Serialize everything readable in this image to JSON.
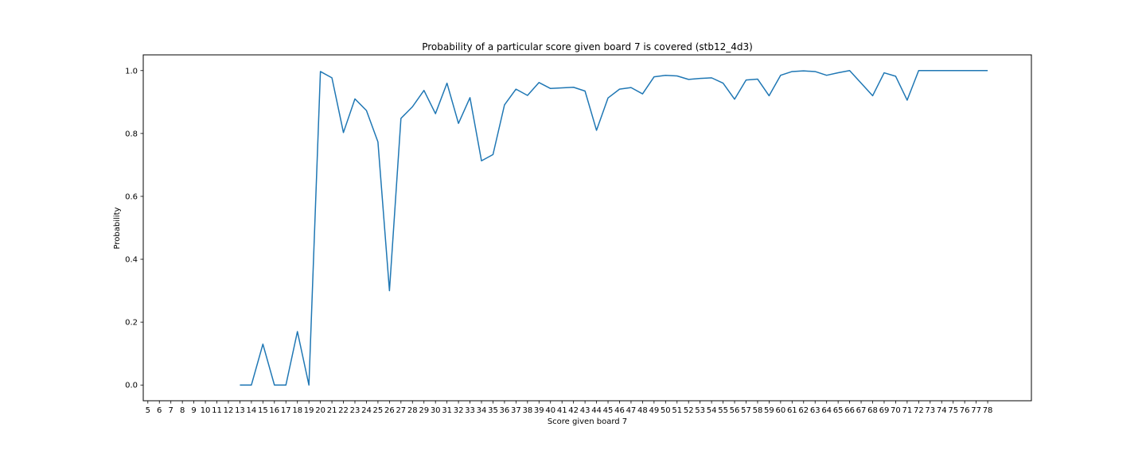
{
  "chart_data": {
    "type": "line",
    "title": "Probability of a particular score given board 7 is covered (stb12_4d3)",
    "xlabel": "Score given board 7",
    "ylabel": "Probability",
    "xticks": [
      5,
      6,
      7,
      8,
      9,
      10,
      11,
      12,
      13,
      14,
      15,
      16,
      17,
      18,
      19,
      20,
      21,
      22,
      23,
      24,
      25,
      26,
      27,
      28,
      29,
      30,
      31,
      32,
      33,
      34,
      35,
      36,
      37,
      38,
      39,
      40,
      41,
      42,
      43,
      44,
      45,
      46,
      47,
      48,
      49,
      50,
      51,
      52,
      53,
      54,
      55,
      56,
      57,
      58,
      59,
      60,
      61,
      62,
      63,
      64,
      65,
      66,
      67,
      68,
      69,
      70,
      71,
      72,
      73,
      74,
      75,
      76,
      77,
      78
    ],
    "yticks": [
      0.0,
      0.2,
      0.4,
      0.6,
      0.8,
      1.0
    ],
    "ytick_labels": [
      "0.0",
      "0.2",
      "0.4",
      "0.6",
      "0.8",
      "1.0"
    ],
    "xlim": [
      4.6,
      81.8
    ],
    "ylim": [
      -0.05,
      1.05
    ],
    "grid": false,
    "line_color": "#1f77b4",
    "series": [
      {
        "x": [
          13,
          14,
          15,
          16,
          17,
          18,
          19,
          20,
          21,
          22,
          23,
          24,
          25,
          26,
          27,
          28,
          29,
          30,
          31,
          32,
          33,
          34,
          35,
          36,
          37,
          38,
          39,
          40,
          41,
          42,
          43,
          44,
          45,
          46,
          47,
          48,
          49,
          50,
          51,
          52,
          53,
          54,
          55,
          56,
          57,
          58,
          59,
          60,
          61,
          62,
          63,
          64,
          65,
          66,
          68,
          69,
          70,
          71,
          72,
          78
        ],
        "y": [
          0.0,
          0.0,
          0.13,
          0.0,
          0.0,
          0.17,
          0.0,
          0.997,
          0.977,
          0.803,
          0.91,
          0.873,
          0.773,
          0.3,
          0.848,
          0.885,
          0.937,
          0.863,
          0.96,
          0.832,
          0.914,
          0.713,
          0.733,
          0.891,
          0.941,
          0.921,
          0.962,
          0.943,
          0.945,
          0.947,
          0.935,
          0.81,
          0.913,
          0.941,
          0.946,
          0.926,
          0.98,
          0.985,
          0.983,
          0.972,
          0.975,
          0.977,
          0.96,
          0.909,
          0.97,
          0.973,
          0.92,
          0.985,
          0.997,
          0.999,
          0.997,
          0.985,
          0.993,
          1.0,
          0.92,
          0.993,
          0.982,
          0.906,
          1.0,
          1.0
        ]
      }
    ]
  }
}
